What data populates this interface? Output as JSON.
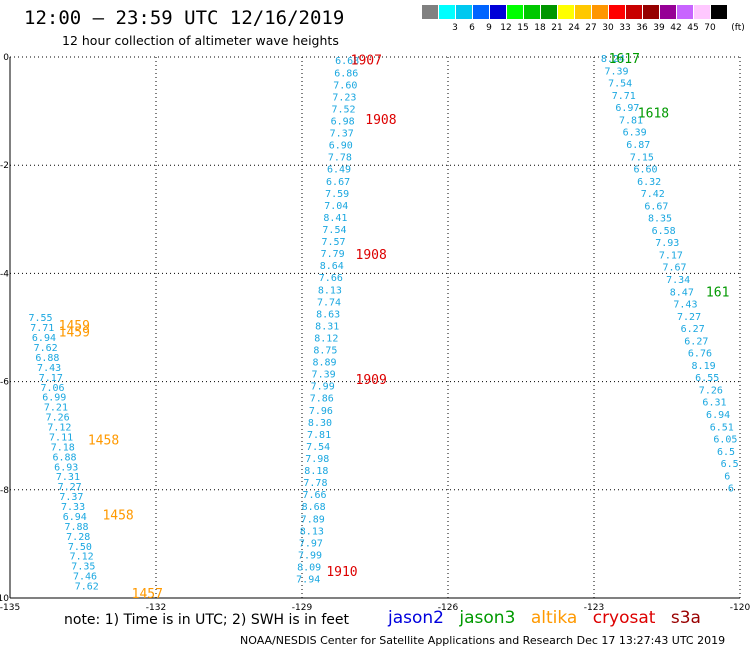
{
  "title": "12:00 – 23:59 UTC 12/16/2019",
  "subtitle": "12 hour collection of altimeter wave heights",
  "color_scale": {
    "unit": "(ft)",
    "bins": [
      {
        "label": "",
        "color": "#808080"
      },
      {
        "label": "3",
        "color": "#00ffff"
      },
      {
        "label": "6",
        "color": "#00c8f0"
      },
      {
        "label": "9",
        "color": "#0064ff"
      },
      {
        "label": "12",
        "color": "#0000d8"
      },
      {
        "label": "15",
        "color": "#00ff00"
      },
      {
        "label": "18",
        "color": "#00c800"
      },
      {
        "label": "21",
        "color": "#009600"
      },
      {
        "label": "24",
        "color": "#ffff00"
      },
      {
        "label": "27",
        "color": "#ffc800"
      },
      {
        "label": "30",
        "color": "#ff9600"
      },
      {
        "label": "33",
        "color": "#ff0000"
      },
      {
        "label": "36",
        "color": "#c80000"
      },
      {
        "label": "39",
        "color": "#960000"
      },
      {
        "label": "42",
        "color": "#960096"
      },
      {
        "label": "45",
        "color": "#c864ff"
      },
      {
        "label": "70",
        "color": "#ffc8ff"
      },
      {
        "label": "",
        "color": "#000000"
      }
    ]
  },
  "note": "note: 1) Time is in UTC; 2) SWH is in feet",
  "legend": [
    {
      "name": "jason2",
      "color": "#0000dd"
    },
    {
      "name": "jason3",
      "color": "#009900"
    },
    {
      "name": "altika",
      "color": "#ff9900"
    },
    {
      "name": "cryosat",
      "color": "#dd0000"
    },
    {
      "name": "s3a",
      "color": "#990000"
    }
  ],
  "footer": "NOAA/NESDIS Center for Satellite Applications and Research    Dec 17 13:27:43 UTC 2019",
  "chart_data": {
    "type": "scatter",
    "title": "12:00 – 23:59 UTC 12/16/2019",
    "xlim": [
      -135,
      -120
    ],
    "ylim": [
      -10,
      0
    ],
    "xticks": [
      "-135",
      "-132",
      "-129",
      "-126",
      "-123",
      "-120"
    ],
    "yticks": [
      "-10",
      "-8",
      "-6",
      "-4",
      "-2",
      "0"
    ],
    "grid": true,
    "value_color": "#1aa7e0",
    "tracks": [
      {
        "id": "left",
        "x_start": -134.62,
        "y_start": -4.81,
        "x_end": -133.67,
        "y_end": -9.77,
        "values": [
          "7.55",
          "7.71",
          "6.94",
          "7.62",
          "6.88",
          "7.43",
          "7.17",
          "7.06",
          "6.99",
          "7.21",
          "7.26",
          "7.12",
          "7.11",
          "7.18",
          "6.88",
          "6.93",
          "7.31",
          "7.27",
          "7.37",
          "7.33",
          "6.94",
          "7.88",
          "7.28",
          "7.50",
          "7.12",
          "7.35",
          "7.46",
          "7.62"
        ]
      },
      {
        "id": "middle",
        "x_start": -128.32,
        "y_start": -0.06,
        "x_end": -129.12,
        "y_end": -9.64,
        "values": [
          "6.68",
          "6.86",
          "7.60",
          "7.23",
          "7.52",
          "6.98",
          "7.37",
          "6.90",
          "7.78",
          "6.49",
          "6.67",
          "7.59",
          "7.04",
          "8.41",
          "7.54",
          "7.57",
          "7.79",
          "8.64",
          "7.66",
          "8.13",
          "7.74",
          "8.63",
          "8.31",
          "8.12",
          "8.75",
          "8.89",
          "7.39",
          "7.99",
          "7.86",
          "7.96",
          "8.30",
          "7.81",
          "7.54",
          "7.98",
          "8.18",
          "7.78",
          "7.66",
          "8.68",
          "7.89",
          "8.13",
          "7.97",
          "7.99",
          "8.09",
          "7.94"
        ]
      },
      {
        "id": "right",
        "x_start": -122.86,
        "y_start": -0.02,
        "x_end": -120.25,
        "y_end": -7.96,
        "values": [
          "8.24",
          "7.39",
          "7.54",
          "7.71",
          "6.97",
          "7.81",
          "6.39",
          "6.87",
          "7.15",
          "6.60",
          "6.32",
          "7.42",
          "6.67",
          "8.35",
          "6.58",
          "7.93",
          "7.17",
          "7.67",
          "7.34",
          "8.47",
          "7.43",
          "7.27",
          "6.27",
          "6.27",
          "6.76",
          "8.19",
          "6.55",
          "7.26",
          "6.31",
          "6.94",
          "6.51",
          "6.05",
          "6.5",
          "6.5",
          "6",
          "6"
        ]
      }
    ],
    "time_labels": [
      {
        "text": "1907",
        "x": -128.0,
        "y": -0.05,
        "mission": "cryosat"
      },
      {
        "text": "1908",
        "x": -127.7,
        "y": -1.15,
        "mission": "cryosat"
      },
      {
        "text": "1908",
        "x": -127.9,
        "y": -3.64,
        "mission": "cryosat"
      },
      {
        "text": "1909",
        "x": -127.9,
        "y": -5.95,
        "mission": "cryosat"
      },
      {
        "text": "1910",
        "x": -128.5,
        "y": -9.5,
        "mission": "cryosat"
      },
      {
        "text": "1617",
        "x": -122.7,
        "y": -0.02,
        "mission": "jason3"
      },
      {
        "text": "1618",
        "x": -122.1,
        "y": -1.03,
        "mission": "jason3"
      },
      {
        "text": "161",
        "x": -120.7,
        "y": -4.33,
        "mission": "jason3"
      },
      {
        "text": "1459",
        "x": -134.0,
        "y": -4.95,
        "mission": "altika"
      },
      {
        "text": "1459",
        "x": -134.0,
        "y": -5.07,
        "mission": "altika"
      },
      {
        "text": "1458",
        "x": -133.4,
        "y": -7.07,
        "mission": "altika"
      },
      {
        "text": "1458",
        "x": -133.1,
        "y": -8.46,
        "mission": "altika"
      },
      {
        "text": "1457",
        "x": -132.5,
        "y": -9.91,
        "mission": "altika"
      }
    ]
  }
}
